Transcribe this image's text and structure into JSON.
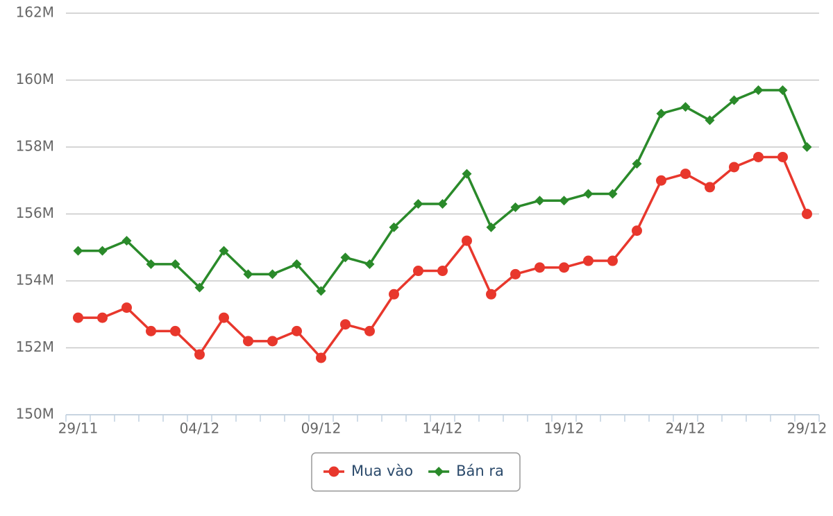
{
  "chart_data": {
    "type": "line",
    "categories": [
      "29/11",
      null,
      null,
      null,
      null,
      "04/12",
      null,
      null,
      null,
      null,
      "09/12",
      null,
      null,
      null,
      null,
      "14/12",
      null,
      null,
      null,
      null,
      "19/12",
      null,
      null,
      null,
      null,
      "24/12",
      null,
      null,
      null,
      null,
      "29/12"
    ],
    "series": [
      {
        "name": "Mua vào",
        "color": "#e8372c",
        "marker": "circle",
        "values": [
          152.9,
          152.9,
          153.2,
          152.5,
          152.5,
          151.8,
          152.9,
          152.2,
          152.2,
          152.5,
          151.7,
          152.7,
          152.5,
          153.6,
          154.3,
          154.3,
          155.2,
          153.6,
          154.2,
          154.4,
          154.4,
          154.6,
          154.6,
          155.5,
          157.0,
          157.2,
          156.8,
          157.4,
          157.7,
          157.7,
          156.0
        ]
      },
      {
        "name": "Bán ra",
        "color": "#2a8a2a",
        "marker": "diamond",
        "values": [
          154.9,
          154.9,
          155.2,
          154.5,
          154.5,
          153.8,
          154.9,
          154.2,
          154.2,
          154.5,
          153.7,
          154.7,
          154.5,
          155.6,
          156.3,
          156.3,
          157.2,
          155.6,
          156.2,
          156.4,
          156.4,
          156.6,
          156.6,
          157.5,
          159.0,
          159.2,
          158.8,
          159.4,
          159.7,
          159.7,
          158.0
        ]
      }
    ],
    "ylim": [
      150,
      162
    ],
    "yticks": [
      {
        "value": 150,
        "label": "150M"
      },
      {
        "value": 152,
        "label": "152M"
      },
      {
        "value": 154,
        "label": "154M"
      },
      {
        "value": 156,
        "label": "156M"
      },
      {
        "value": 158,
        "label": "158M"
      },
      {
        "value": 160,
        "label": "160M"
      },
      {
        "value": 162,
        "label": "162M"
      }
    ],
    "grid": true
  }
}
